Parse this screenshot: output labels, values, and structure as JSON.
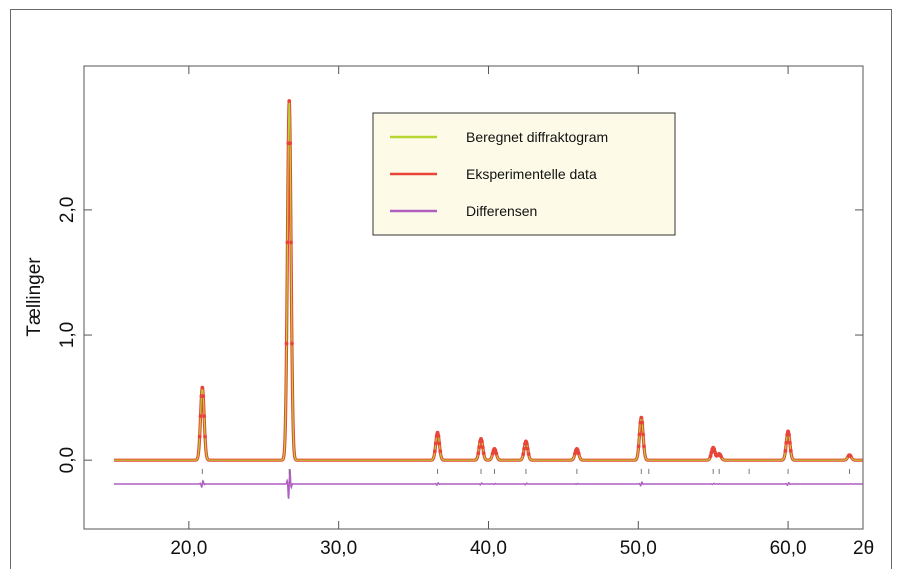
{
  "chart_data": {
    "type": "line",
    "title": "",
    "xlabel": "2θ",
    "ylabel": "Tællinger",
    "xlim": [
      13.0,
      65.0
    ],
    "ylim": [
      -0.55,
      3.15
    ],
    "x_ticks": [
      20,
      30,
      40,
      50,
      60
    ],
    "x_tick_labels": [
      "20,0",
      "30,0",
      "40,0",
      "50,0",
      "60,0"
    ],
    "y_ticks": [
      0,
      1,
      2
    ],
    "y_tick_labels": [
      "0,0",
      "1,0",
      "2,0"
    ],
    "grid": false,
    "legend_position": "top-center",
    "series": [
      {
        "name": "Beregnet diffraktogram",
        "color": "#b6d531",
        "style": "line"
      },
      {
        "name": "Eksperimentelle data",
        "color": "#e8443a",
        "style": "points"
      },
      {
        "name": "Differensen",
        "color": "#b05fc0",
        "style": "line"
      }
    ],
    "peaks": [
      {
        "x": 20.9,
        "y": 0.58
      },
      {
        "x": 26.7,
        "y": 2.87
      },
      {
        "x": 36.6,
        "y": 0.22
      },
      {
        "x": 39.5,
        "y": 0.17
      },
      {
        "x": 40.4,
        "y": 0.09
      },
      {
        "x": 42.5,
        "y": 0.15
      },
      {
        "x": 45.9,
        "y": 0.09
      },
      {
        "x": 50.2,
        "y": 0.34
      },
      {
        "x": 55.0,
        "y": 0.1
      },
      {
        "x": 55.4,
        "y": 0.05
      },
      {
        "x": 60.0,
        "y": 0.23
      },
      {
        "x": 64.1,
        "y": 0.04
      }
    ],
    "reflection_marks_x": [
      20.9,
      26.7,
      36.6,
      39.5,
      40.4,
      42.5,
      45.9,
      50.2,
      50.7,
      55.0,
      55.4,
      57.4,
      60.0,
      64.1
    ],
    "baseline": 0.0,
    "difference_offset": -0.19,
    "x_range_data": [
      15.0,
      65.0
    ]
  }
}
